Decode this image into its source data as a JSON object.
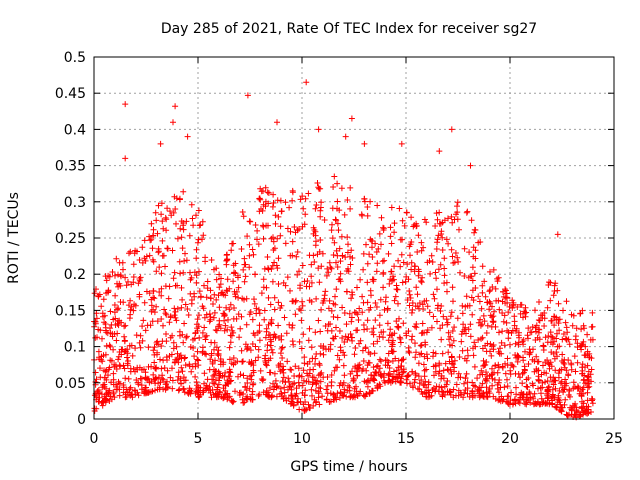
{
  "chart_data": {
    "type": "scatter",
    "title": "Day 285 of 2021, Rate Of TEC Index for receiver sg27",
    "xlabel": "GPS time / hours",
    "ylabel": "ROTI / TECUs",
    "xlim": [
      0,
      25
    ],
    "ylim": [
      0,
      0.5
    ],
    "xticks": [
      0,
      5,
      10,
      15,
      20,
      25
    ],
    "yticks": [
      0,
      0.05,
      0.1,
      0.15,
      0.2,
      0.25,
      0.3,
      0.35,
      0.4,
      0.45,
      0.5
    ],
    "xtick_labels": [
      "0",
      "5",
      "10",
      "15",
      "20",
      "25"
    ],
    "ytick_labels": [
      "0",
      "0.05",
      "0.1",
      "0.15",
      "0.2",
      "0.25",
      "0.3",
      "0.35",
      "0.4",
      "0.45",
      "0.5"
    ],
    "grid": true,
    "marker": "+",
    "marker_color": "#ff0000",
    "envelope": {
      "x": [
        0,
        1,
        2,
        3,
        4,
        5,
        6,
        7,
        8,
        9,
        10,
        11,
        12,
        13,
        14,
        15,
        16,
        17,
        18,
        19,
        20,
        21,
        22,
        23,
        24
      ],
      "y_low": [
        0.01,
        0.03,
        0.03,
        0.04,
        0.04,
        0.03,
        0.03,
        0.02,
        0.03,
        0.03,
        0.01,
        0.02,
        0.03,
        0.03,
        0.05,
        0.05,
        0.03,
        0.03,
        0.03,
        0.03,
        0.02,
        0.02,
        0.02,
        0.0,
        0.01
      ],
      "y_high": [
        0.18,
        0.22,
        0.25,
        0.3,
        0.32,
        0.3,
        0.2,
        0.28,
        0.32,
        0.32,
        0.32,
        0.33,
        0.34,
        0.31,
        0.29,
        0.3,
        0.28,
        0.3,
        0.3,
        0.22,
        0.17,
        0.15,
        0.2,
        0.15,
        0.15
      ]
    },
    "notable_points": [
      {
        "x": 1.5,
        "y": 0.435
      },
      {
        "x": 1.5,
        "y": 0.36
      },
      {
        "x": 3.9,
        "y": 0.432
      },
      {
        "x": 3.8,
        "y": 0.41
      },
      {
        "x": 3.2,
        "y": 0.38
      },
      {
        "x": 4.5,
        "y": 0.39
      },
      {
        "x": 7.4,
        "y": 0.447
      },
      {
        "x": 8.8,
        "y": 0.41
      },
      {
        "x": 10.2,
        "y": 0.465
      },
      {
        "x": 10.8,
        "y": 0.4
      },
      {
        "x": 12.4,
        "y": 0.415
      },
      {
        "x": 12.1,
        "y": 0.39
      },
      {
        "x": 13.0,
        "y": 0.38
      },
      {
        "x": 14.8,
        "y": 0.38
      },
      {
        "x": 17.2,
        "y": 0.4
      },
      {
        "x": 16.6,
        "y": 0.37
      },
      {
        "x": 18.1,
        "y": 0.35
      },
      {
        "x": 22.3,
        "y": 0.255
      }
    ]
  }
}
